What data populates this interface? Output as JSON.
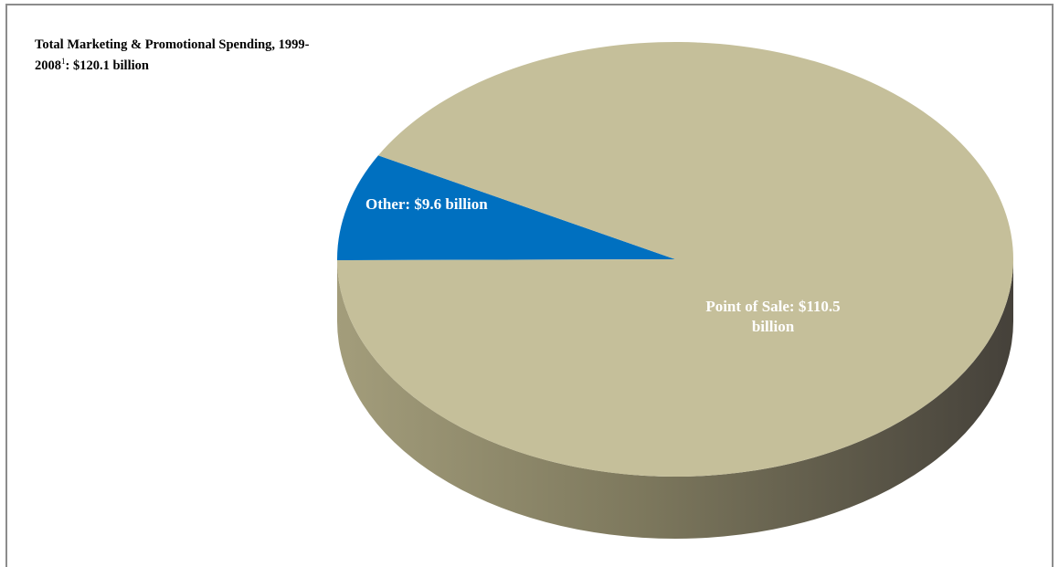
{
  "title": {
    "main": "Total Marketing & Promotional Spending, 1999- 2008",
    "superscript": "1",
    "suffix": ":  $120.1 billion"
  },
  "colors": {
    "point_of_sale": "#C5BF9A",
    "other": "#0070C0",
    "side_light": "#A39D7B",
    "side_dark": "#4B473A"
  },
  "chart_data": {
    "type": "pie",
    "title": "Total Marketing & Promotional Spending, 1999- 2008: $120.1 billion",
    "total": 120.1,
    "unit": "billion",
    "slices": [
      {
        "name": "Other",
        "value": 9.6,
        "label": "Other:  $9.6 billion",
        "color": "#0070C0"
      },
      {
        "name": "Point of Sale",
        "value": 110.5,
        "label_lines": [
          "Point of Sale:  $110.5",
          "billion"
        ],
        "color": "#C5BF9A"
      }
    ],
    "legend": "none",
    "style": "3d"
  }
}
